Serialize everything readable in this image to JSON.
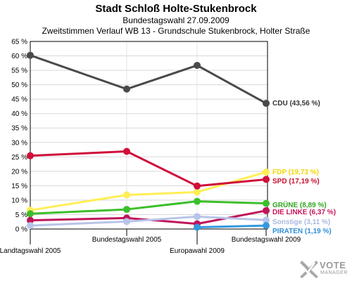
{
  "header": {
    "title": "Stadt Schloß Holte-Stukenbrock",
    "subtitle": "Bundestagswahl 27.09.2009",
    "subtitle2": "Zweitstimmen Verlauf WB 13 - Grundschule Stukenbrock, Holter Straße"
  },
  "logo": {
    "line1": "VOTE",
    "line2": "MANAGER"
  },
  "chart_data": {
    "type": "line",
    "title": "Stadt Schloß Holte-Stukenbrock",
    "subtitle": "Bundestagswahl 27.09.2009",
    "ylim": [
      0,
      65
    ],
    "y_ticks": [
      0,
      5,
      10,
      15,
      20,
      25,
      30,
      35,
      40,
      45,
      50,
      55,
      60,
      65
    ],
    "y_tick_labels": [
      "0 %",
      "5 %",
      "10 %",
      "15 %",
      "20 %",
      "25 %",
      "30 %",
      "35 %",
      "40 %",
      "45 %",
      "50 %",
      "55 %",
      "60 %",
      "65 %"
    ],
    "categories": [
      "Landtagswahl 2005",
      "Bundestagswahl 2005",
      "Europawahl 2009",
      "Bundestagswahl 2009"
    ],
    "grid": true,
    "series": [
      {
        "name": "CDU",
        "label": "CDU (43,56 %)",
        "color": "#4a4a4a",
        "label_color": "#333333",
        "values": [
          60.2,
          48.5,
          56.7,
          43.56
        ]
      },
      {
        "name": "FDP",
        "label": "FDP (19,73 %)",
        "color": "#ffee55",
        "label_color": "#f2d500",
        "values": [
          6.5,
          11.8,
          12.8,
          19.73
        ]
      },
      {
        "name": "SPD",
        "label": "SPD (17,19 %)",
        "color": "#d0103a",
        "label_color": "#c8102e",
        "values": [
          25.4,
          26.9,
          14.9,
          17.19
        ]
      },
      {
        "name": "GRÜNE",
        "label": "GRÜNE (8,89 %)",
        "color": "#3cbf2a",
        "label_color": "#2fa81e",
        "values": [
          5.3,
          6.8,
          9.6,
          8.89
        ]
      },
      {
        "name": "DIE LINKE",
        "label": "DIE LINKE (6,37 %)",
        "color": "#c0145a",
        "label_color": "#c8145a",
        "values": [
          3.0,
          3.8,
          1.8,
          6.37
        ]
      },
      {
        "name": "Sonstige",
        "label": "Sonstige (3,11 %)",
        "color": "#b8c4e8",
        "label_color": "#aab8e0",
        "values": [
          1.2,
          2.6,
          4.3,
          3.11
        ]
      },
      {
        "name": "PIRATEN",
        "label": "PIRATEN (1,19 %)",
        "color": "#3399dd",
        "label_color": "#2f8fd6",
        "values": [
          null,
          null,
          0.6,
          1.19
        ]
      }
    ]
  }
}
